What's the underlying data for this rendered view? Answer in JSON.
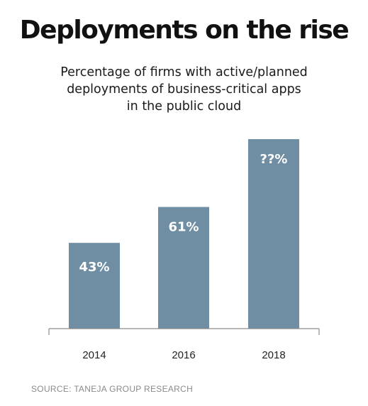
{
  "title": "Deployments on the rise",
  "subtitle_lines": [
    "Percentage of firms with active/planned",
    "deployments of business-critical apps",
    "in the public cloud"
  ],
  "source": "SOURCE: TANEJA GROUP RESEARCH",
  "colors": {
    "bar": "#6f8da3",
    "bar_label": "#ffffff",
    "axis": "#8c8c8c",
    "tick_label": "#222222"
  },
  "chart_data": {
    "type": "bar",
    "categories": [
      "2014",
      "2016",
      "2018"
    ],
    "values": [
      43,
      61,
      95
    ],
    "bar_labels": [
      "43%",
      "61%",
      "??%"
    ],
    "ylim": [
      0,
      100
    ],
    "grid": false,
    "legend": "none",
    "title": "Deployments on the rise",
    "xlabel": "",
    "ylabel": ""
  }
}
